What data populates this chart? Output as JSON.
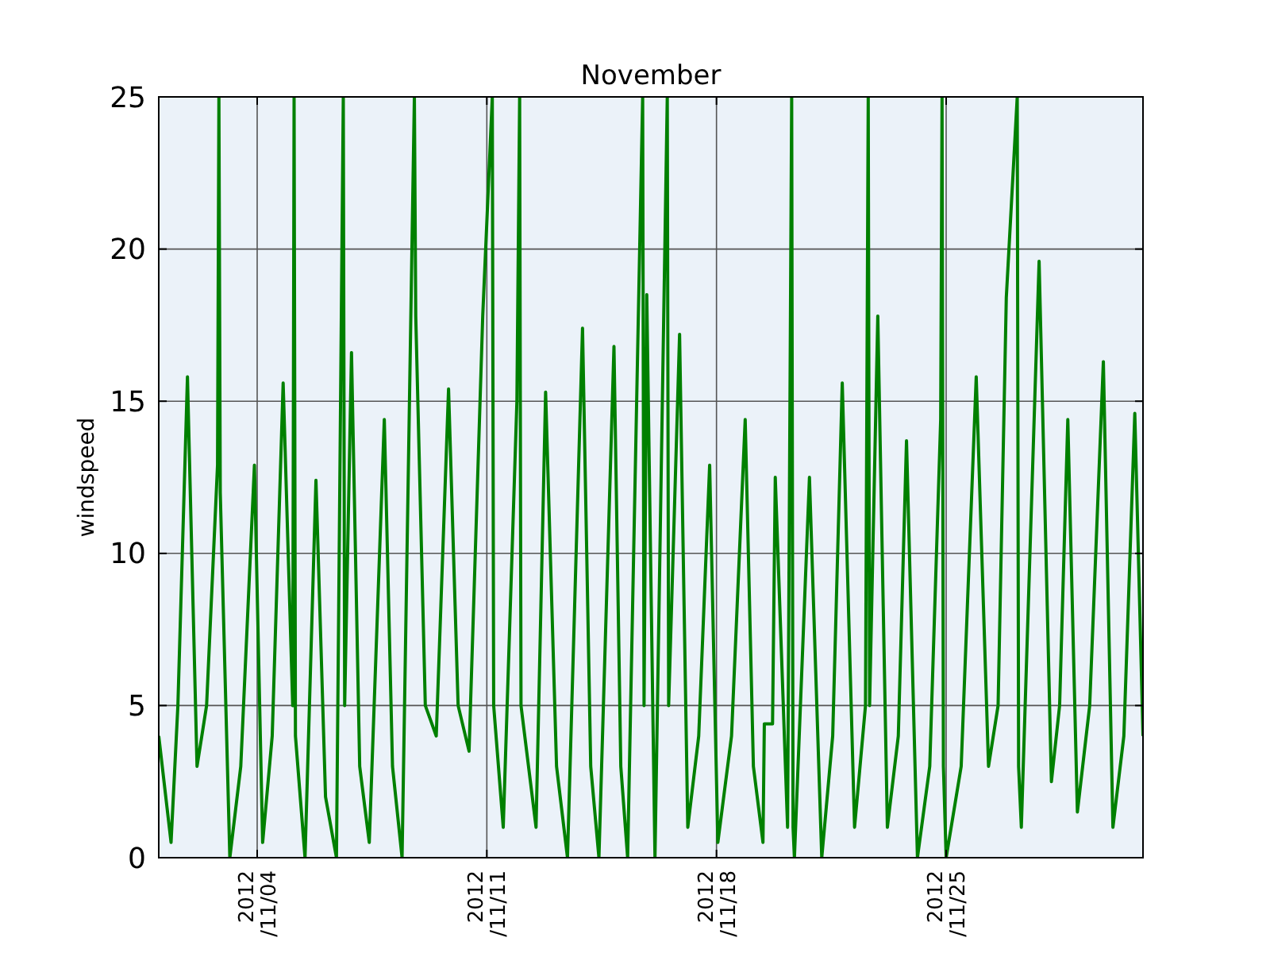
{
  "chart_data": {
    "type": "line",
    "title": "November",
    "ylabel": "windspeed",
    "x": [
      "2012-11-01T00:00",
      "2012-11-01T09:00",
      "2012-11-01T14:00",
      "2012-11-01T21:00",
      "2012-11-02T04:00",
      "2012-11-02T11:00",
      "2012-11-02T19:00",
      "2012-11-02T20:00",
      "2012-11-02T21:00",
      "2012-11-03T04:00",
      "2012-11-03T12:00",
      "2012-11-03T22:00",
      "2012-11-04T04:00",
      "2012-11-04T11:00",
      "2012-11-04T19:00",
      "2012-11-05T02:00",
      "2012-11-05T03:00",
      "2012-11-05T04:00",
      "2012-11-05T11:00",
      "2012-11-05T19:00",
      "2012-11-06T02:00",
      "2012-11-06T10:00",
      "2012-11-06T15:00",
      "2012-11-06T16:00",
      "2012-11-06T21:00",
      "2012-11-07T03:00",
      "2012-11-07T10:00",
      "2012-11-07T21:00",
      "2012-11-08T03:00",
      "2012-11-08T10:00",
      "2012-11-08T19:00",
      "2012-11-08T20:00",
      "2012-11-09T03:00",
      "2012-11-09T11:00",
      "2012-11-09T20:00",
      "2012-11-10T03:00",
      "2012-11-10T11:00",
      "2012-11-10T21:00",
      "2012-11-11T04:00",
      "2012-11-11T05:00",
      "2012-11-11T12:00",
      "2012-11-11T22:00",
      "2012-11-12T00:00",
      "2012-11-12T01:00",
      "2012-11-12T12:00",
      "2012-11-12T19:00",
      "2012-11-13T03:00",
      "2012-11-13T11:00",
      "2012-11-13T22:00",
      "2012-11-14T04:00",
      "2012-11-14T10:00",
      "2012-11-14T21:00",
      "2012-11-15T02:00",
      "2012-11-15T07:00",
      "2012-11-15T18:00",
      "2012-11-15T19:00",
      "2012-11-15T21:00",
      "2012-11-16T03:00",
      "2012-11-16T12:00",
      "2012-11-16T13:00",
      "2012-11-16T21:00",
      "2012-11-17T03:00",
      "2012-11-17T11:00",
      "2012-11-17T19:00",
      "2012-11-18T01:00",
      "2012-11-18T11:00",
      "2012-11-18T21:00",
      "2012-11-19T03:00",
      "2012-11-19T10:00",
      "2012-11-19T11:00",
      "2012-11-19T17:00",
      "2012-11-19T19:00",
      "2012-11-20T04:00",
      "2012-11-20T07:00",
      "2012-11-20T08:00",
      "2012-11-20T09:00",
      "2012-11-20T20:00",
      "2012-11-21T05:00",
      "2012-11-21T13:00",
      "2012-11-21T20:00",
      "2012-11-22T05:00",
      "2012-11-22T13:00",
      "2012-11-22T15:00",
      "2012-11-22T16:00",
      "2012-11-22T22:00",
      "2012-11-23T05:00",
      "2012-11-23T13:00",
      "2012-11-23T19:00",
      "2012-11-24T03:00",
      "2012-11-24T12:00",
      "2012-11-24T20:00",
      "2012-11-24T21:00",
      "2012-11-24T22:00",
      "2012-11-25T00:00",
      "2012-11-25T11:00",
      "2012-11-25T22:00",
      "2012-11-26T07:00",
      "2012-11-26T14:00",
      "2012-11-26T20:00",
      "2012-11-27T04:00",
      "2012-11-27T05:00",
      "2012-11-27T07:00",
      "2012-11-27T20:00",
      "2012-11-28T05:00",
      "2012-11-28T11:00",
      "2012-11-28T17:00",
      "2012-11-29T00:00",
      "2012-11-29T09:00",
      "2012-11-29T19:00",
      "2012-11-30T02:00",
      "2012-11-30T10:00",
      "2012-11-30T18:00",
      "2012-12-01T00:00"
    ],
    "series": [
      {
        "color": "#008000",
        "values": [
          4,
          0.5,
          5,
          15.8,
          3,
          5,
          12.9,
          25,
          12,
          0,
          3,
          12.9,
          0.5,
          4,
          15.6,
          5,
          25,
          4,
          0,
          12.4,
          2,
          0,
          25,
          5,
          16.6,
          3,
          0.5,
          14.4,
          3,
          0,
          25,
          17.8,
          5,
          4,
          15.4,
          5,
          3.5,
          17.8,
          25,
          5,
          1,
          15,
          25,
          5,
          1,
          15.3,
          3,
          0,
          17.4,
          3,
          0,
          16.8,
          3,
          0,
          25,
          5,
          18.5,
          0,
          25,
          5,
          17.2,
          1,
          4,
          12.9,
          0.5,
          4,
          14.4,
          3,
          0.5,
          4.4,
          4.4,
          12.5,
          1,
          25,
          1,
          0,
          12.5,
          0,
          4,
          15.6,
          1,
          5,
          25,
          5,
          17.8,
          1,
          4,
          13.7,
          0,
          3,
          14.4,
          25,
          3,
          0,
          3,
          15.8,
          3,
          5,
          18.4,
          25,
          3,
          1,
          19.6,
          2.5,
          5,
          14.4,
          1.5,
          5,
          16.3,
          1,
          4,
          14.6,
          4
        ]
      }
    ],
    "xlim": [
      "2012-11-01",
      "2012-12-01"
    ],
    "xticks": [
      {
        "value": "2012-11-04",
        "label": "2012\n/11/04"
      },
      {
        "value": "2012-11-11",
        "label": "2012\n/11/11"
      },
      {
        "value": "2012-11-18",
        "label": "2012\n/11/18"
      },
      {
        "value": "2012-11-25",
        "label": "2012\n/11/25"
      }
    ],
    "ylim": [
      0,
      25
    ],
    "yticks": [
      0,
      5,
      10,
      15,
      20,
      25
    ],
    "grid": true,
    "line_style": "solid",
    "marker": "none"
  }
}
